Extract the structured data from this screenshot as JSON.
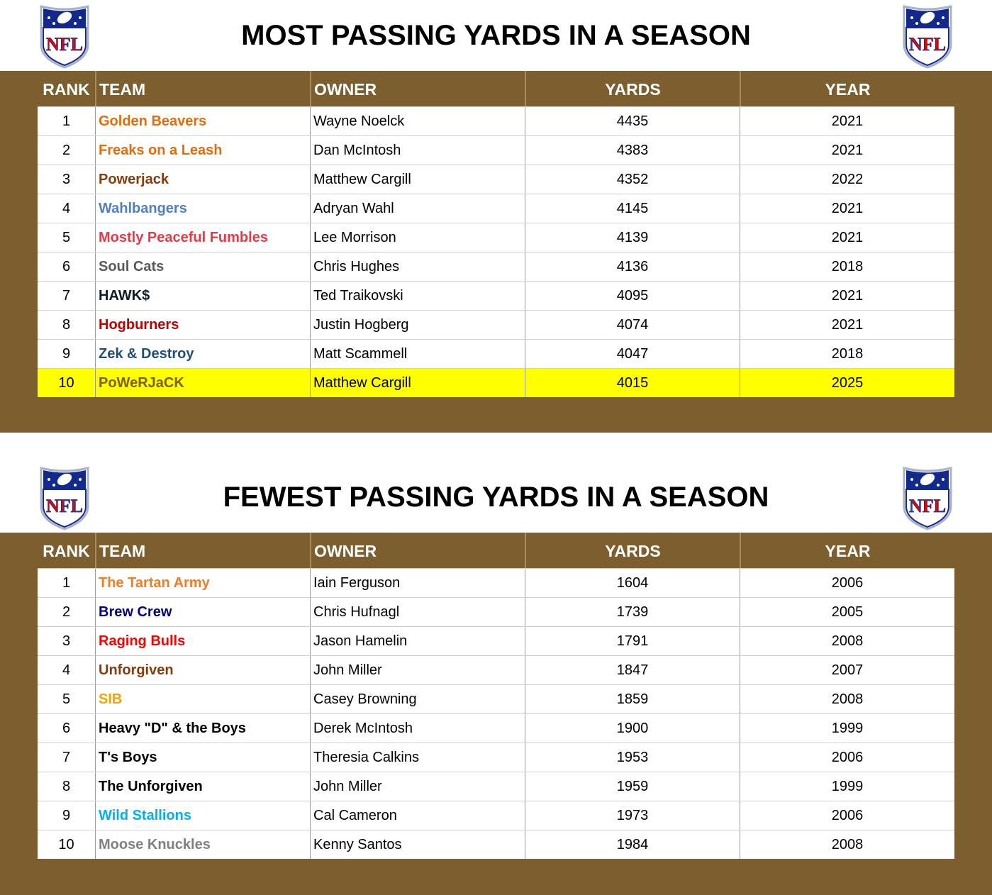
{
  "logo": "NFL",
  "tables": [
    {
      "title": "MOST PASSING YARDS IN A SEASON",
      "columns": [
        "RANK",
        "TEAM",
        "OWNER",
        "YARDS",
        "YEAR"
      ],
      "rows": [
        {
          "rank": 1,
          "team": "Golden Beavers",
          "team_color": "#e46c0a",
          "owner": "Wayne Noelck",
          "yards": 4435,
          "year": 2021
        },
        {
          "rank": 2,
          "team": "Freaks on a Leash",
          "team_color": "#e46c0a",
          "owner": "Dan McIntosh",
          "yards": 4383,
          "year": 2021
        },
        {
          "rank": 3,
          "team": "Powerjack",
          "team_color": "#843c0c",
          "owner": "Matthew Cargill",
          "yards": 4352,
          "year": 2022
        },
        {
          "rank": 4,
          "team": "Wahlbangers",
          "team_color": "#4f81bd",
          "owner": "Adryan Wahl",
          "yards": 4145,
          "year": 2021
        },
        {
          "rank": 5,
          "team": "Mostly Peaceful Fumbles",
          "team_color": "#e63946",
          "owner": "Lee Morrison",
          "yards": 4139,
          "year": 2021
        },
        {
          "rank": 6,
          "team": "Soul Cats",
          "team_color": "#595959",
          "owner": "Chris Hughes",
          "yards": 4136,
          "year": 2018
        },
        {
          "rank": 7,
          "team": "HAWK$",
          "team_color": "#0d1b2a",
          "owner": "Ted Traikovski",
          "yards": 4095,
          "year": 2021
        },
        {
          "rank": 8,
          "team": "Hogburners",
          "team_color": "#c00000",
          "owner": "Justin Hogberg",
          "yards": 4074,
          "year": 2021
        },
        {
          "rank": 9,
          "team": "Zek & Destroy",
          "team_color": "#1f4e79",
          "owner": "Matt Scammell",
          "yards": 4047,
          "year": 2018
        },
        {
          "rank": 10,
          "team": "PoWeRJaCK",
          "team_color": "#7f6000",
          "owner": "Matthew Cargill",
          "yards": 4015,
          "year": 2025,
          "row_color": "#ffff00"
        }
      ]
    },
    {
      "title": "FEWEST PASSING YARDS IN A SEASON",
      "columns": [
        "RANK",
        "TEAM",
        "OWNER",
        "YARDS",
        "YEAR"
      ],
      "rows": [
        {
          "rank": 1,
          "team": "The Tartan Army",
          "team_color": "#f47c20",
          "owner": "Iain Ferguson",
          "yards": 1604,
          "year": 2006
        },
        {
          "rank": 2,
          "team": "Brew Crew",
          "team_color": "#000080",
          "owner": "Chris Hufnagl",
          "yards": 1739,
          "year": 2005
        },
        {
          "rank": 3,
          "team": "Raging Bulls",
          "team_color": "#ff0000",
          "owner": "Jason Hamelin",
          "yards": 1791,
          "year": 2008
        },
        {
          "rank": 4,
          "team": "Unforgiven",
          "team_color": "#843c0c",
          "owner": "John Miller",
          "yards": 1847,
          "year": 2007
        },
        {
          "rank": 5,
          "team": "SIB",
          "team_color": "#f4a300",
          "owner": "Casey Browning",
          "yards": 1859,
          "year": 2008
        },
        {
          "rank": 6,
          "team": "Heavy \"D\" & the Boys",
          "team_color": "#000000",
          "owner": "Derek McIntosh",
          "yards": 1900,
          "year": 1999
        },
        {
          "rank": 7,
          "team": "T's Boys",
          "team_color": "#000000",
          "owner": "Theresia Calkins",
          "yards": 1953,
          "year": 2006
        },
        {
          "rank": 8,
          "team": "The Unforgiven",
          "team_color": "#000000",
          "owner": "John Miller",
          "yards": 1959,
          "year": 1999
        },
        {
          "rank": 9,
          "team": "Wild Stallions",
          "team_color": "#00b0f0",
          "owner": "Cal Cameron",
          "yards": 1973,
          "year": 2006
        },
        {
          "rank": 10,
          "team": "Moose Knuckles",
          "team_color": "#808080",
          "owner": "Kenny Santos",
          "yards": 1984,
          "year": 2008
        }
      ]
    }
  ]
}
